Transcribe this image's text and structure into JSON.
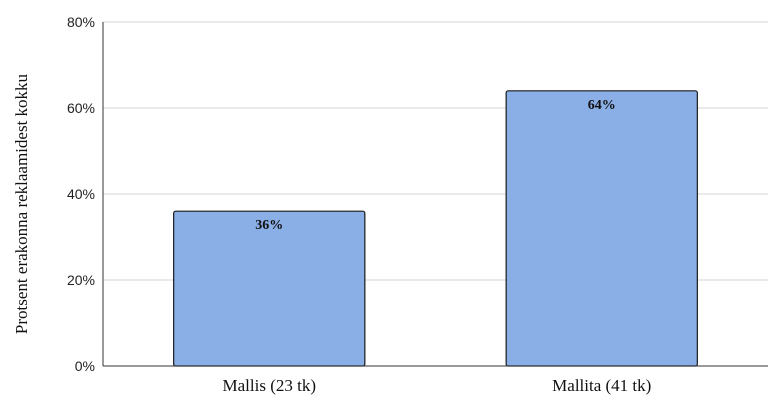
{
  "chart_data": {
    "type": "bar",
    "categories": [
      "Mallis (23 tk)",
      "Mallita (41 tk)"
    ],
    "values": [
      36,
      64
    ],
    "data_labels": [
      "36%",
      "64%"
    ],
    "title": "",
    "xlabel": "",
    "ylabel": "Protsent erakonna reklaamidest kokku",
    "ylim": [
      0,
      80
    ],
    "yticks": [
      0,
      20,
      40,
      60,
      80
    ],
    "ytick_labels": [
      "0%",
      "20%",
      "40%",
      "60%",
      "80%"
    ],
    "grid": true,
    "legend": "none",
    "bar_color": "#8aaee6",
    "bar_edge_color": "#1a1a1a",
    "grid_color": "#d6d6d6"
  }
}
